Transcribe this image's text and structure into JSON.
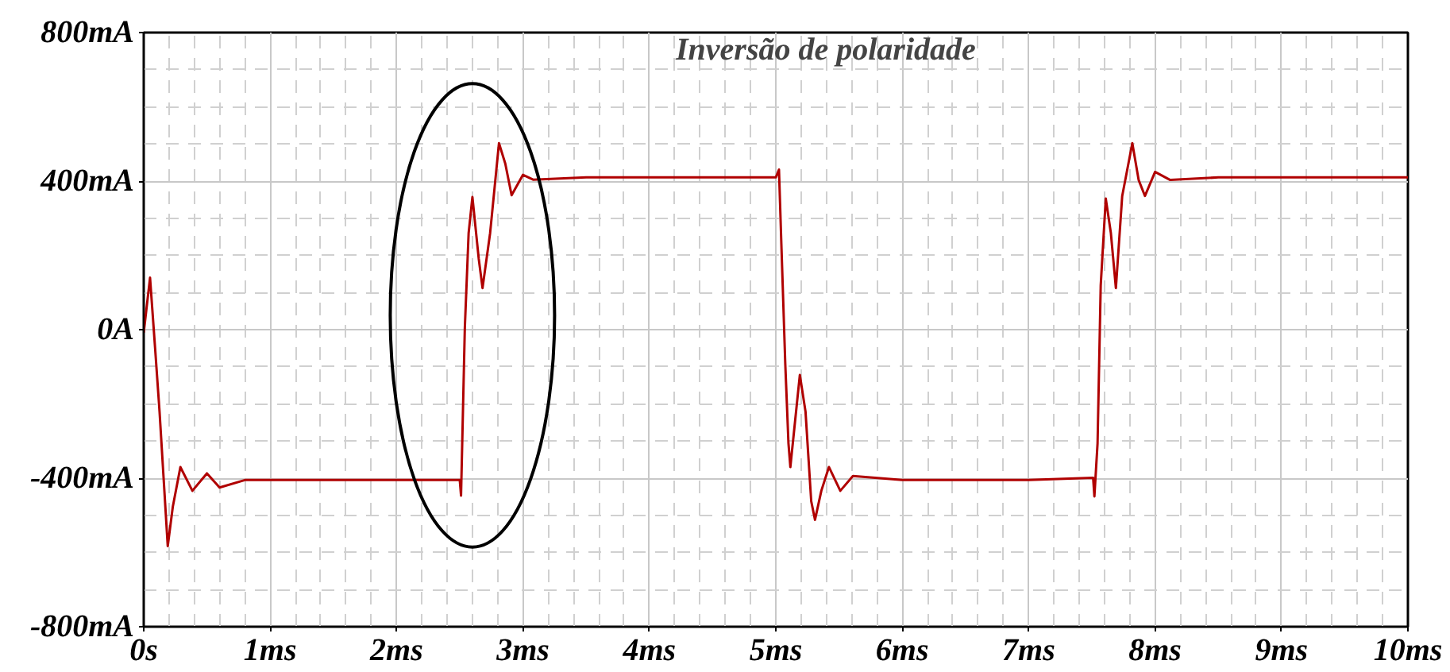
{
  "chart_data": {
    "type": "line",
    "x": [
      0,
      0.05,
      0.09,
      0.125,
      0.19,
      0.23,
      0.29,
      0.385,
      0.5,
      0.6,
      0.8,
      1.2,
      1.6,
      2.0,
      2.4,
      2.5,
      2.51,
      2.54,
      2.57,
      2.6,
      2.65,
      2.68,
      2.74,
      2.81,
      2.86,
      2.91,
      3.0,
      3.08,
      3.5,
      4.0,
      4.5,
      5.0,
      5.025,
      5.045,
      5.075,
      5.1,
      5.115,
      5.19,
      5.235,
      5.28,
      5.31,
      5.36,
      5.42,
      5.51,
      5.61,
      6.0,
      6.5,
      7.0,
      7.51,
      7.52,
      7.545,
      7.57,
      7.61,
      7.65,
      7.69,
      7.74,
      7.82,
      7.87,
      7.92,
      8.0,
      8.12,
      8.5,
      9.0,
      9.5,
      10
    ],
    "series": [
      {
        "color": "#b00000",
        "values": [
          -8,
          140,
          -50,
          -220,
          -583,
          -477,
          -370,
          -434,
          -387,
          -425,
          -405,
          -405,
          -405,
          -405,
          -405,
          -405,
          -447,
          5,
          260,
          357,
          191,
          112,
          260,
          502,
          447,
          362,
          417,
          404,
          410,
          410,
          410,
          410,
          431,
          218,
          -94,
          -306,
          -370,
          -122,
          -221,
          -462,
          -512,
          -434,
          -370,
          -434,
          -394,
          -405,
          -405,
          -405,
          -399,
          -449,
          -306,
          119,
          353,
          261,
          112,
          360,
          502,
          403,
          360,
          425,
          403,
          410,
          410,
          410,
          410
        ]
      }
    ],
    "xlim": [
      0,
      10
    ],
    "ylim": [
      -800,
      800
    ],
    "xticks": [
      {
        "value": 0,
        "label": "0s"
      },
      {
        "value": 1,
        "label": "1ms"
      },
      {
        "value": 2,
        "label": "2ms"
      },
      {
        "value": 3,
        "label": "3ms"
      },
      {
        "value": 4,
        "label": "4ms"
      },
      {
        "value": 5,
        "label": "5ms"
      },
      {
        "value": 6,
        "label": "6ms"
      },
      {
        "value": 7,
        "label": "7ms"
      },
      {
        "value": 8,
        "label": "8ms"
      },
      {
        "value": 9,
        "label": "9ms"
      },
      {
        "value": 10,
        "label": "10ms"
      }
    ],
    "yticks": [
      {
        "value": -800,
        "label": "-800mA"
      },
      {
        "value": -400,
        "label": "-400mA"
      },
      {
        "value": 0,
        "label": "0A"
      },
      {
        "value": 400,
        "label": "400mA"
      },
      {
        "value": 800,
        "label": "800mA"
      }
    ],
    "grid": true,
    "marker": "none",
    "line_style": "solid",
    "annotations": [
      "Inversão de polaridade"
    ]
  }
}
